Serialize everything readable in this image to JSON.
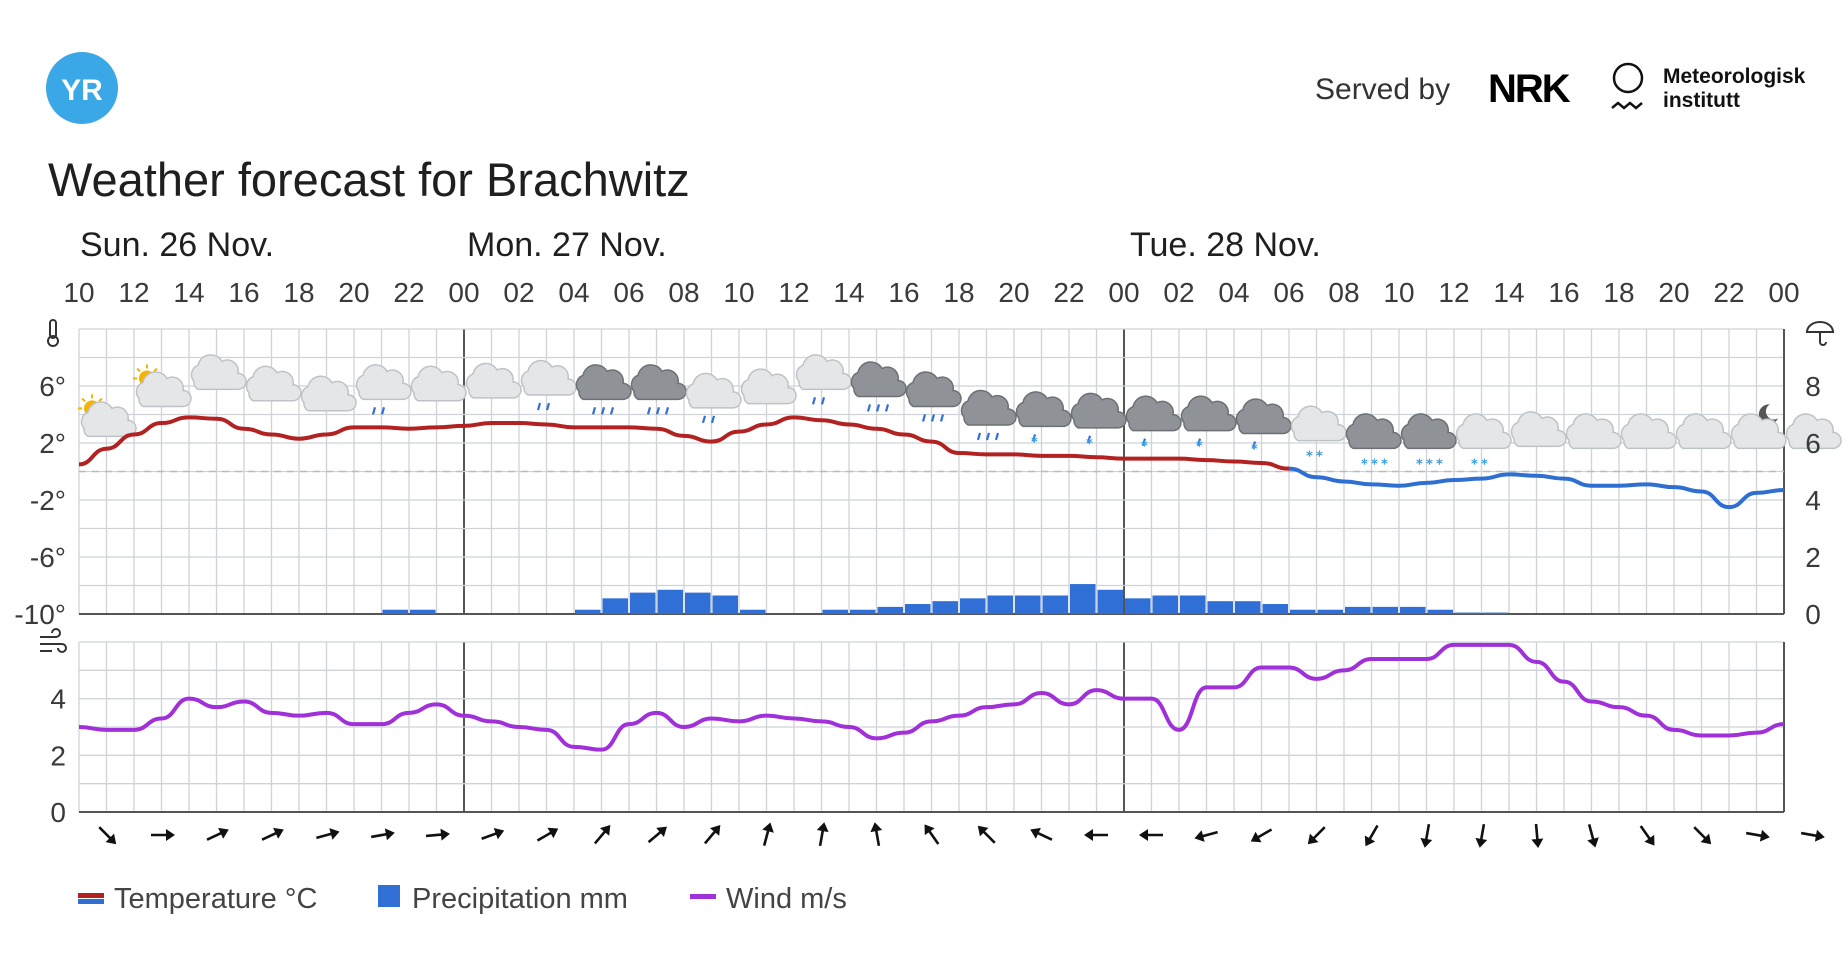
{
  "header": {
    "logo_text": "YR",
    "served_by": "Served by",
    "nrk_logo_text": "NRK",
    "met_line1": "Meteorologisk",
    "met_line2": "institutt"
  },
  "title": "Weather forecast for Brachwitz",
  "days": [
    {
      "label": "Sun. 26 Nov."
    },
    {
      "label": "Mon. 27 Nov."
    },
    {
      "label": "Tue. 28 Nov."
    }
  ],
  "legend": {
    "temperature": "Temperature °C",
    "precipitation": "Precipitation mm",
    "wind": "Wind m/s"
  },
  "colors": {
    "temp_warm": "#b22222",
    "temp_cold": "#2f6fd1",
    "precip": "#2f6fd6",
    "wind": "#a030d8",
    "grid": "#cfd3d8",
    "yr_logo": "#3aa8e6"
  },
  "chart_data": {
    "type": "line",
    "x": [
      "10",
      "11",
      "12",
      "13",
      "14",
      "15",
      "16",
      "17",
      "18",
      "19",
      "20",
      "21",
      "22",
      "23",
      "00",
      "01",
      "02",
      "03",
      "04",
      "05",
      "06",
      "07",
      "08",
      "09",
      "10",
      "11",
      "12",
      "13",
      "14",
      "15",
      "16",
      "17",
      "18",
      "19",
      "20",
      "21",
      "22",
      "23",
      "00",
      "01",
      "02",
      "03",
      "04",
      "05",
      "06",
      "07",
      "08",
      "09",
      "10",
      "11",
      "12",
      "13",
      "14",
      "15",
      "16",
      "17",
      "18",
      "19",
      "20",
      "21",
      "22",
      "23",
      "00"
    ],
    "x_tick_labels": [
      "10",
      "12",
      "14",
      "16",
      "18",
      "20",
      "22",
      "00",
      "02",
      "04",
      "06",
      "08",
      "10",
      "12",
      "14",
      "16",
      "18",
      "20",
      "22",
      "00",
      "02",
      "04",
      "06",
      "08",
      "10",
      "12",
      "14",
      "16",
      "18",
      "20",
      "22",
      "00"
    ],
    "temperature": {
      "unit": "°C",
      "yticks": [
        "6°",
        "2°",
        "-2°",
        "-6°",
        "-10°"
      ],
      "ylim": [
        -10,
        10
      ],
      "values": [
        0.5,
        1.6,
        2.6,
        3.4,
        3.8,
        3.7,
        3.0,
        2.6,
        2.3,
        2.6,
        3.1,
        3.1,
        3.0,
        3.1,
        3.2,
        3.4,
        3.4,
        3.3,
        3.1,
        3.1,
        3.1,
        3.0,
        2.5,
        2.1,
        2.8,
        3.3,
        3.8,
        3.6,
        3.3,
        3.0,
        2.6,
        2.1,
        1.3,
        1.2,
        1.2,
        1.1,
        1.1,
        1.0,
        0.9,
        0.9,
        0.9,
        0.8,
        0.7,
        0.6,
        0.2,
        -0.4,
        -0.7,
        -0.9,
        -1.0,
        -0.8,
        -0.6,
        -0.5,
        -0.2,
        -0.3,
        -0.5,
        -1.0,
        -1.0,
        -0.9,
        -1.1,
        -1.4,
        -2.5,
        -1.5,
        -1.3
      ]
    },
    "precipitation": {
      "unit": "mm",
      "right_yticks": [
        "8",
        "6",
        "4",
        "2",
        "0"
      ],
      "ylim": [
        0,
        10
      ],
      "values": [
        0,
        0,
        0,
        0,
        0,
        0,
        0,
        0,
        0,
        0,
        0,
        0.15,
        0.15,
        0,
        0,
        0,
        0,
        0,
        0.15,
        0.55,
        0.75,
        0.85,
        0.75,
        0.65,
        0.15,
        0,
        0,
        0.15,
        0.15,
        0.25,
        0.35,
        0.45,
        0.55,
        0.65,
        0.65,
        0.65,
        1.05,
        0.85,
        0.55,
        0.65,
        0.65,
        0.45,
        0.45,
        0.35,
        0.15,
        0.15,
        0.25,
        0.25,
        0.25,
        0.15,
        0.05,
        0.05,
        0,
        0,
        0,
        0,
        0,
        0,
        0,
        0,
        0,
        0
      ]
    },
    "wind": {
      "unit": "m/s",
      "yticks": [
        "4",
        "2",
        "0"
      ],
      "ylim": [
        0,
        6
      ],
      "values": [
        3.0,
        2.9,
        2.9,
        3.3,
        4.0,
        3.7,
        3.9,
        3.5,
        3.4,
        3.5,
        3.1,
        3.1,
        3.5,
        3.8,
        3.4,
        3.2,
        3.0,
        2.9,
        2.3,
        2.2,
        3.1,
        3.5,
        3.0,
        3.3,
        3.2,
        3.4,
        3.3,
        3.2,
        3.0,
        2.6,
        2.8,
        3.2,
        3.4,
        3.7,
        3.8,
        4.2,
        3.8,
        4.3,
        4.0,
        4.0,
        2.9,
        4.4,
        4.4,
        5.1,
        5.1,
        4.7,
        5.0,
        5.4,
        5.4,
        5.4,
        5.9,
        5.9,
        5.9,
        5.3,
        4.6,
        3.9,
        3.7,
        3.4,
        2.9,
        2.7,
        2.7,
        2.8,
        3.1
      ]
    },
    "wind_direction_angles_deg": [
      45,
      0,
      -25,
      -25,
      -15,
      -10,
      -5,
      -20,
      -30,
      -50,
      -40,
      -50,
      -75,
      -80,
      -100,
      -125,
      -135,
      -155,
      -180,
      -180,
      -195,
      -210,
      -225,
      -240,
      -260,
      -260,
      -275,
      -285,
      -305,
      -315,
      -350,
      -350,
      -350,
      -340,
      -330,
      -325,
      -315,
      -310,
      -330
    ],
    "weather_icons": [
      "partly-sunny",
      "partly-sunny",
      "cloudy",
      "cloudy",
      "cloudy",
      "light-rain",
      "cloudy",
      "cloudy",
      "light-rain",
      "rain",
      "rain",
      "light-rain",
      "cloudy",
      "light-rain",
      "rain",
      "rain",
      "rain",
      "sleet",
      "sleet",
      "sleet",
      "sleet",
      "sleet",
      "light-snow",
      "snow",
      "snow",
      "light-snow",
      "cloudy",
      "cloudy",
      "cloudy",
      "cloudy",
      "cloudy-night",
      "cloudy"
    ],
    "grid": true
  }
}
